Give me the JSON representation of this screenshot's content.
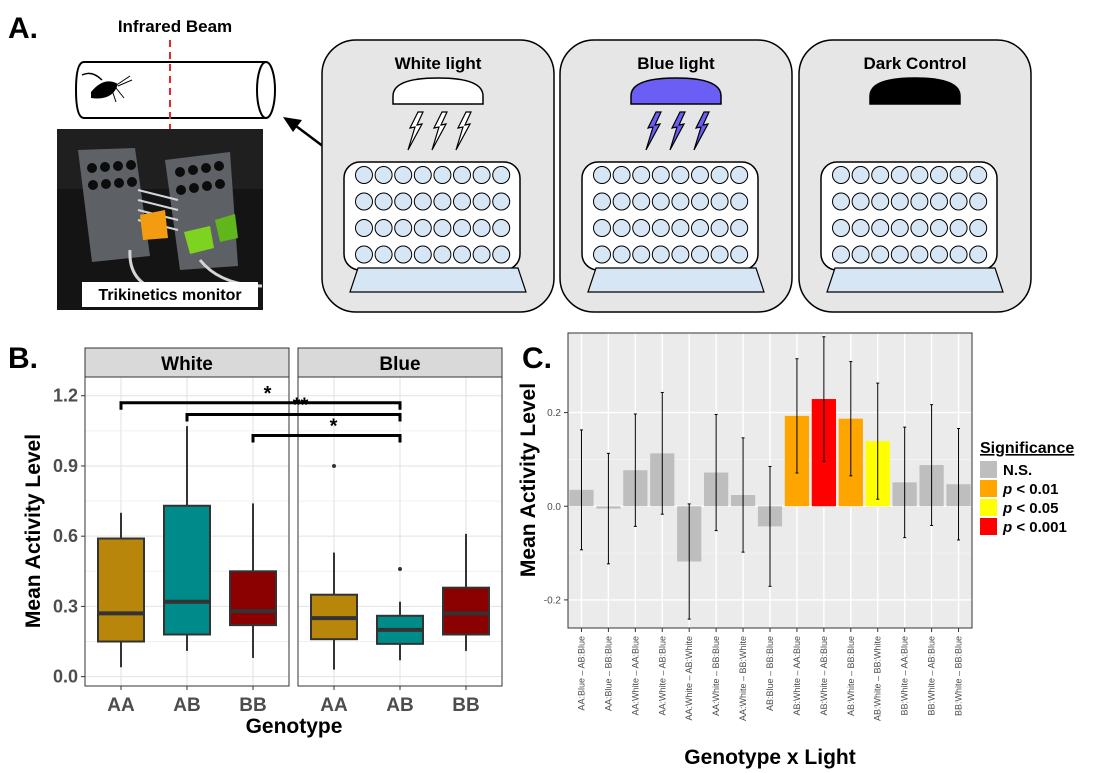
{
  "panel_a": {
    "label": "A.",
    "beam_label": "Infrared Beam",
    "monitor_label": "Trikinetics monitor",
    "chambers": [
      {
        "title": "White light"
      },
      {
        "title": "Blue light"
      },
      {
        "title": "Dark Control"
      }
    ],
    "colors": {
      "chamber_bg": "#e6e6e6",
      "well_fill": "#d6e6f5",
      "blue_lamp": "#6b5ef5",
      "base_fill": "#d6e6f5",
      "beam_line": "#e8262b"
    }
  },
  "chart_data": [
    {
      "type": "box",
      "panel_label": "B.",
      "facets": [
        "White",
        "Blue"
      ],
      "categories": [
        "AA",
        "AB",
        "BB"
      ],
      "xlabel": "Genotype",
      "ylabel": "Mean Activity Level",
      "ylim": [
        -0.04,
        1.28
      ],
      "yticks": [
        "0.0",
        "0.3",
        "0.6",
        "0.9",
        "1.2"
      ],
      "ytick_values": [
        0.0,
        0.3,
        0.6,
        0.9,
        1.2
      ],
      "colors": {
        "AA": "#b8860b",
        "AB": "#008b8b",
        "BB": "#8b0000"
      },
      "boxes": {
        "White": [
          {
            "genotype": "AA",
            "min": 0.04,
            "q1": 0.15,
            "median": 0.27,
            "q3": 0.59,
            "max": 0.7,
            "outliers": []
          },
          {
            "genotype": "AB",
            "min": 0.11,
            "q1": 0.18,
            "median": 0.32,
            "q3": 0.73,
            "max": 1.07,
            "outliers": []
          },
          {
            "genotype": "BB",
            "min": 0.08,
            "q1": 0.22,
            "median": 0.28,
            "q3": 0.45,
            "max": 0.74,
            "outliers": []
          }
        ],
        "Blue": [
          {
            "genotype": "AA",
            "min": 0.03,
            "q1": 0.16,
            "median": 0.25,
            "q3": 0.35,
            "max": 0.53,
            "outliers": [
              0.9
            ]
          },
          {
            "genotype": "AB",
            "min": 0.07,
            "q1": 0.14,
            "median": 0.2,
            "q3": 0.26,
            "max": 0.32,
            "outliers": [
              0.46
            ]
          },
          {
            "genotype": "BB",
            "min": 0.11,
            "q1": 0.18,
            "median": 0.27,
            "q3": 0.38,
            "max": 0.61,
            "outliers": []
          }
        ]
      },
      "significance": [
        {
          "from": "White:AA",
          "to": "Blue:AB",
          "y": 1.17,
          "label": "*"
        },
        {
          "from": "White:AB",
          "to": "Blue:AB",
          "y": 1.12,
          "label": "**"
        },
        {
          "from": "White:BB",
          "to": "Blue:AB",
          "y": 1.03,
          "label": "*"
        }
      ]
    },
    {
      "type": "bar",
      "panel_label": "C.",
      "xlabel": "Genotype x Light",
      "ylabel": "Mean Activity Level",
      "ylim": [
        -0.26,
        0.37
      ],
      "yticks": [
        "-0.2",
        "0.0",
        "0.2"
      ],
      "ytick_values": [
        -0.2,
        0.0,
        0.2
      ],
      "categories": [
        "AA:Blue – AB:Blue",
        "AA:Blue – BB:Blue",
        "AA:White – AA:Blue",
        "AA:White – AB:Blue",
        "AA:White – AB:White",
        "AA:White – BB:Blue",
        "AA:White – BB:White",
        "AB:Blue – BB:Blue",
        "AB:White – AA:Blue",
        "AB:White – AB:Blue",
        "AB:White – BB:Blue",
        "AB:White – BB:White",
        "BB:White – AA:Blue",
        "BB:White – AB:Blue",
        "BB:White – BB:Blue"
      ],
      "values": [
        0.035,
        -0.005,
        0.077,
        0.113,
        -0.118,
        0.072,
        0.024,
        -0.043,
        0.193,
        0.229,
        0.187,
        0.139,
        0.051,
        0.088,
        0.047
      ],
      "lower": [
        -0.093,
        -0.123,
        -0.043,
        -0.017,
        -0.241,
        -0.052,
        -0.098,
        -0.171,
        0.071,
        0.096,
        0.065,
        0.015,
        -0.067,
        -0.041,
        -0.072
      ],
      "upper": [
        0.163,
        0.113,
        0.197,
        0.243,
        0.005,
        0.196,
        0.146,
        0.085,
        0.315,
        0.362,
        0.309,
        0.263,
        0.169,
        0.217,
        0.166
      ],
      "significance": [
        "N.S.",
        "N.S.",
        "N.S.",
        "N.S.",
        "N.S.",
        "N.S.",
        "N.S.",
        "N.S.",
        "p < 0.01",
        "p < 0.001",
        "p < 0.01",
        "p < 0.05",
        "N.S.",
        "N.S.",
        "N.S."
      ],
      "legend": {
        "title": "Significance",
        "entries": [
          {
            "label": "N.S.",
            "color": "#bebebe"
          },
          {
            "label": "p < 0.01",
            "color": "#ffa500"
          },
          {
            "label": "p < 0.05",
            "color": "#ffff00"
          },
          {
            "label": "p < 0.001",
            "color": "#ff0000"
          }
        ]
      }
    }
  ]
}
